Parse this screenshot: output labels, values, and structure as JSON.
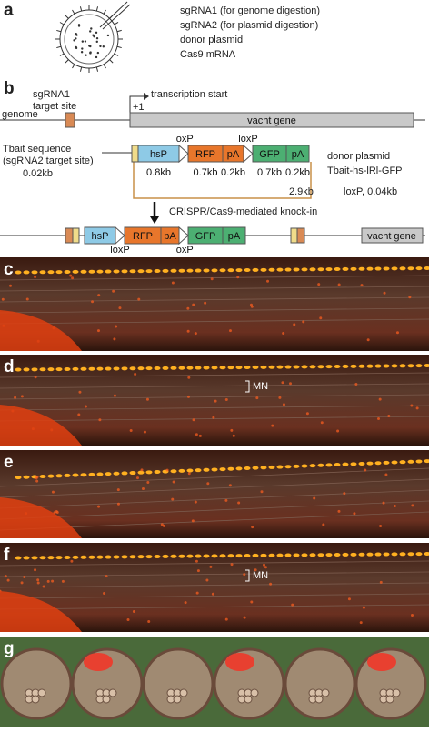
{
  "panel_a": {
    "label": "a",
    "reagents": [
      "sgRNA1 (for genome digestion)",
      "sgRNA2 (for plasmid digestion)",
      "donor plasmid",
      "Cas9 mRNA"
    ]
  },
  "panel_b": {
    "label": "b",
    "genome": {
      "label": "genome",
      "target_site": [
        "sgRNA1",
        "target site"
      ],
      "tss": "transcription start",
      "plus_one": "+1",
      "gene": "vacht gene"
    },
    "donor": {
      "tbait": [
        "Tbait sequence",
        "(sgRNA2 target site)",
        "0.02kb"
      ],
      "elements": [
        "hsP",
        "RFP",
        "pA",
        "GFP",
        "pA"
      ],
      "sizes": [
        "0.8kb",
        "0.7kb",
        "0.2kb",
        "0.7kb",
        "0.2kb"
      ],
      "loxp": [
        "loxP",
        "loxP"
      ],
      "name": "donor plasmid",
      "construct": "Tbait-hs-lRl-GFP",
      "backbone": "2.9kb",
      "loxp_size": "loxP, 0.04kb"
    },
    "step": "CRISPR/Cas9-mediated knock-in",
    "result": {
      "elements": [
        "hsP",
        "RFP",
        "pA",
        "GFP",
        "pA"
      ],
      "loxp": [
        "loxP",
        "loxP"
      ],
      "gene": "vacht gene"
    }
  },
  "images": [
    {
      "label": "c"
    },
    {
      "label": "d",
      "annotation": "MN"
    },
    {
      "label": "e"
    },
    {
      "label": "f",
      "annotation": "MN"
    },
    {
      "label": "g"
    }
  ]
}
